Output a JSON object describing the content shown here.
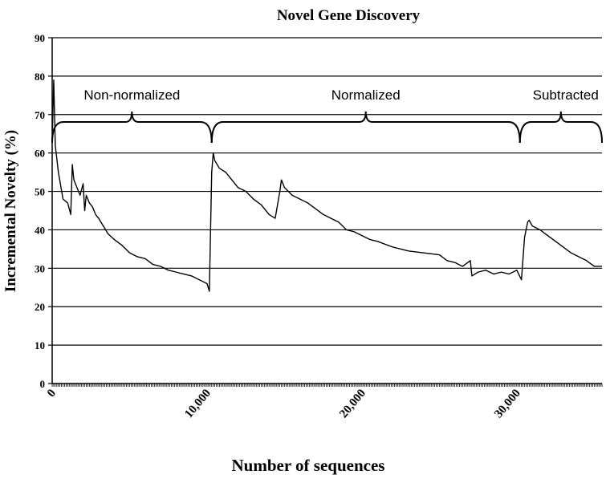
{
  "chart_data": {
    "type": "line",
    "title": "Novel Gene Discovery",
    "xlabel": "Number of sequences",
    "ylabel": "Incremental Novelty (%)",
    "xlim": [
      0,
      35500
    ],
    "ylim": [
      0,
      90
    ],
    "y_ticks": [
      0,
      10,
      20,
      30,
      40,
      50,
      60,
      70,
      80,
      90
    ],
    "x_ticks": [
      {
        "value": 0,
        "label": "0"
      },
      {
        "value": 10000,
        "label": "10,000"
      },
      {
        "value": 20000,
        "label": "20,000"
      },
      {
        "value": 30000,
        "label": "30,000"
      }
    ],
    "grid": "horizontal",
    "line_color": "#000000",
    "regions": [
      {
        "label": "Non-normalized",
        "x_start": 0,
        "x_end": 10300
      },
      {
        "label": "Normalized",
        "x_start": 10300,
        "x_end": 30200
      },
      {
        "label": "Subtracted",
        "x_start": 30200,
        "x_end": 35500
      }
    ],
    "series": [
      {
        "x": [
          0,
          100,
          200,
          400,
          700,
          1000,
          1200,
          1300,
          1400,
          1600,
          1800,
          2000,
          2100,
          2200,
          2400,
          2600,
          2800,
          3000,
          3300,
          3600,
          4000,
          4500,
          5000,
          5500,
          6000,
          6500,
          7000,
          7500,
          8000,
          8500,
          9000,
          9500,
          10000,
          10150,
          10300,
          10400,
          10500,
          10800,
          11200,
          11600,
          12000,
          12500,
          13000,
          13500,
          14000,
          14400,
          14700,
          14800,
          15000,
          15500,
          16000,
          16500,
          17000,
          17500,
          18000,
          18500,
          19000,
          19500,
          20000,
          20500,
          21000,
          22000,
          23000,
          24000,
          25000,
          25500,
          26000,
          26500,
          27000,
          27100,
          27500,
          28000,
          28500,
          29000,
          29500,
          30000,
          30300,
          30500,
          30700,
          30800,
          31000,
          31500,
          32000,
          32500,
          33000,
          33500,
          34000,
          34500,
          35000,
          35500
        ],
        "values": [
          63,
          79,
          62,
          55,
          48,
          47,
          44,
          57,
          53,
          51,
          49,
          52,
          45,
          49,
          47,
          46,
          44,
          43,
          41,
          39,
          37.5,
          36,
          34,
          33,
          32.5,
          31,
          30.5,
          29.5,
          29,
          28.5,
          28,
          27,
          26,
          24,
          55,
          60,
          58,
          56,
          55,
          53,
          51,
          50,
          48,
          46.5,
          44,
          43,
          50,
          53,
          51,
          49,
          48,
          47,
          45.5,
          44,
          43,
          42,
          40,
          39.5,
          38.5,
          37.5,
          37,
          35.5,
          34.5,
          34,
          33.5,
          32,
          31.5,
          30.5,
          32,
          28,
          29,
          29.5,
          28.5,
          29,
          28.5,
          29.5,
          27,
          38,
          42,
          42.5,
          41,
          40,
          38.5,
          37,
          35.5,
          34,
          33,
          32,
          30.5,
          30.5
        ]
      }
    ]
  }
}
